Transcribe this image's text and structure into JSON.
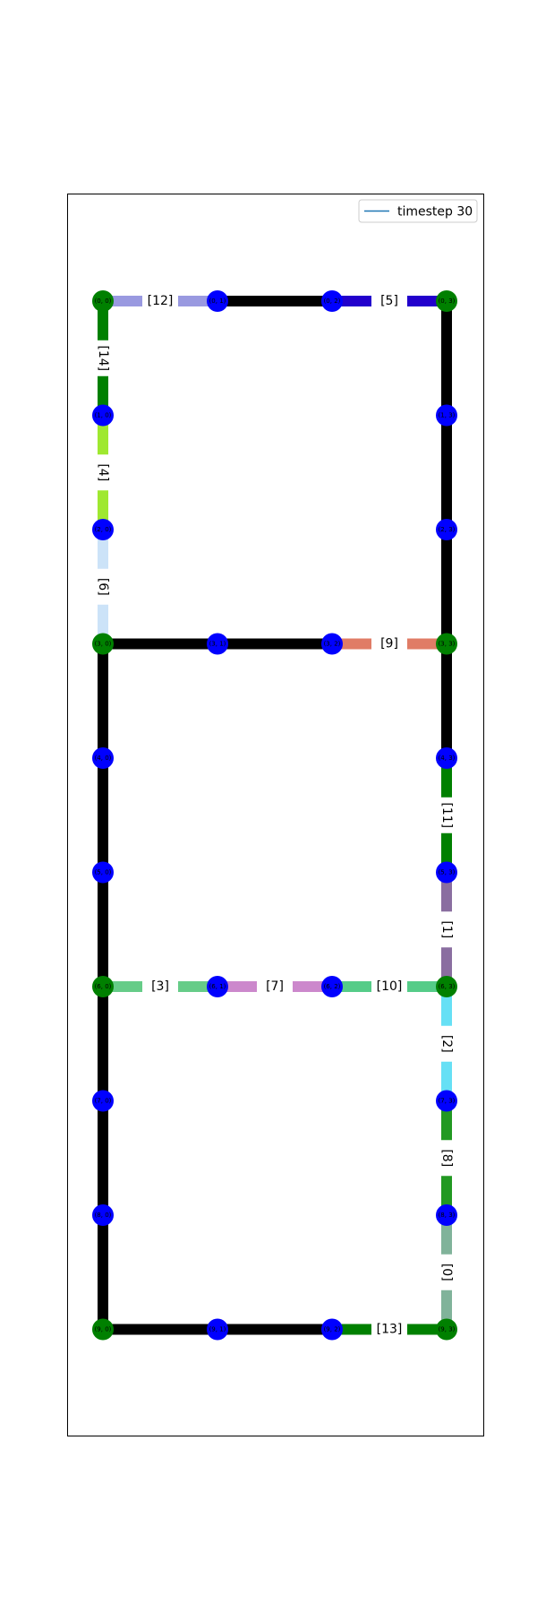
{
  "legend": {
    "label": "timestep 30",
    "line_color": "#1f77b4"
  },
  "grid": {
    "rows": 10,
    "cols": 4
  },
  "colors": {
    "node_green": "#008000",
    "node_blue": "#0000ff",
    "edge_black": "#000000"
  },
  "nodes": [
    {
      "r": 0,
      "c": 0,
      "label": "(0, 0)",
      "color": "#008000"
    },
    {
      "r": 0,
      "c": 1,
      "label": "(0, 1)",
      "color": "#0000ff"
    },
    {
      "r": 0,
      "c": 2,
      "label": "(0, 2)",
      "color": "#0000ff"
    },
    {
      "r": 0,
      "c": 3,
      "label": "(0, 3)",
      "color": "#008000"
    },
    {
      "r": 1,
      "c": 0,
      "label": "(1, 0)",
      "color": "#0000ff"
    },
    {
      "r": 1,
      "c": 3,
      "label": "(1, 3)",
      "color": "#0000ff"
    },
    {
      "r": 2,
      "c": 0,
      "label": "(2, 0)",
      "color": "#0000ff"
    },
    {
      "r": 2,
      "c": 3,
      "label": "(2, 3)",
      "color": "#0000ff"
    },
    {
      "r": 3,
      "c": 0,
      "label": "(3, 0)",
      "color": "#008000"
    },
    {
      "r": 3,
      "c": 1,
      "label": "(3, 1)",
      "color": "#0000ff"
    },
    {
      "r": 3,
      "c": 2,
      "label": "(3, 2)",
      "color": "#0000ff"
    },
    {
      "r": 3,
      "c": 3,
      "label": "(3, 3)",
      "color": "#008000"
    },
    {
      "r": 4,
      "c": 0,
      "label": "(4, 0)",
      "color": "#0000ff"
    },
    {
      "r": 4,
      "c": 3,
      "label": "(4, 3)",
      "color": "#0000ff"
    },
    {
      "r": 5,
      "c": 0,
      "label": "(5, 0)",
      "color": "#0000ff"
    },
    {
      "r": 5,
      "c": 3,
      "label": "(5, 3)",
      "color": "#0000ff"
    },
    {
      "r": 6,
      "c": 0,
      "label": "(6, 0)",
      "color": "#008000"
    },
    {
      "r": 6,
      "c": 1,
      "label": "(6, 1)",
      "color": "#0000ff"
    },
    {
      "r": 6,
      "c": 2,
      "label": "(6, 2)",
      "color": "#0000ff"
    },
    {
      "r": 6,
      "c": 3,
      "label": "(6, 3)",
      "color": "#008000"
    },
    {
      "r": 7,
      "c": 0,
      "label": "(7, 0)",
      "color": "#0000ff"
    },
    {
      "r": 7,
      "c": 3,
      "label": "(7, 3)",
      "color": "#0000ff"
    },
    {
      "r": 8,
      "c": 0,
      "label": "(8, 0)",
      "color": "#0000ff"
    },
    {
      "r": 8,
      "c": 3,
      "label": "(8, 3)",
      "color": "#0000ff"
    },
    {
      "r": 9,
      "c": 0,
      "label": "(9, 0)",
      "color": "#008000"
    },
    {
      "r": 9,
      "c": 1,
      "label": "(9, 1)",
      "color": "#0000ff"
    },
    {
      "r": 9,
      "c": 2,
      "label": "(9, 2)",
      "color": "#0000ff"
    },
    {
      "r": 9,
      "c": 3,
      "label": "(9, 3)",
      "color": "#008000"
    }
  ],
  "edges": [
    {
      "from": [
        0,
        0
      ],
      "to": [
        0,
        1
      ],
      "color": "#9999e0",
      "label": "[12]"
    },
    {
      "from": [
        0,
        1
      ],
      "to": [
        0,
        2
      ],
      "color": "#000000",
      "label": ""
    },
    {
      "from": [
        0,
        2
      ],
      "to": [
        0,
        3
      ],
      "color": "#2200cc",
      "label": "[5]"
    },
    {
      "from": [
        0,
        0
      ],
      "to": [
        1,
        0
      ],
      "color": "#008000",
      "label": "[14]"
    },
    {
      "from": [
        1,
        0
      ],
      "to": [
        2,
        0
      ],
      "color": "#9fe830",
      "label": "[4]"
    },
    {
      "from": [
        2,
        0
      ],
      "to": [
        3,
        0
      ],
      "color": "#cce3f8",
      "label": "[6]"
    },
    {
      "from": [
        0,
        3
      ],
      "to": [
        1,
        3
      ],
      "color": "#000000",
      "label": ""
    },
    {
      "from": [
        1,
        3
      ],
      "to": [
        2,
        3
      ],
      "color": "#000000",
      "label": ""
    },
    {
      "from": [
        2,
        3
      ],
      "to": [
        3,
        3
      ],
      "color": "#000000",
      "label": ""
    },
    {
      "from": [
        3,
        0
      ],
      "to": [
        3,
        1
      ],
      "color": "#000000",
      "label": ""
    },
    {
      "from": [
        3,
        1
      ],
      "to": [
        3,
        2
      ],
      "color": "#000000",
      "label": ""
    },
    {
      "from": [
        3,
        2
      ],
      "to": [
        3,
        3
      ],
      "color": "#e07c66",
      "label": "[9]"
    },
    {
      "from": [
        3,
        0
      ],
      "to": [
        4,
        0
      ],
      "color": "#000000",
      "label": ""
    },
    {
      "from": [
        4,
        0
      ],
      "to": [
        5,
        0
      ],
      "color": "#000000",
      "label": ""
    },
    {
      "from": [
        5,
        0
      ],
      "to": [
        6,
        0
      ],
      "color": "#000000",
      "label": ""
    },
    {
      "from": [
        3,
        3
      ],
      "to": [
        4,
        3
      ],
      "color": "#000000",
      "label": ""
    },
    {
      "from": [
        4,
        3
      ],
      "to": [
        5,
        3
      ],
      "color": "#008000",
      "label": "[11]"
    },
    {
      "from": [
        5,
        3
      ],
      "to": [
        6,
        3
      ],
      "color": "#8a6ea0",
      "label": "[1]"
    },
    {
      "from": [
        6,
        0
      ],
      "to": [
        6,
        1
      ],
      "color": "#66cc88",
      "label": "[3]"
    },
    {
      "from": [
        6,
        1
      ],
      "to": [
        6,
        2
      ],
      "color": "#cc88cc",
      "label": "[7]"
    },
    {
      "from": [
        6,
        2
      ],
      "to": [
        6,
        3
      ],
      "color": "#55cc88",
      "label": "[10]"
    },
    {
      "from": [
        6,
        0
      ],
      "to": [
        7,
        0
      ],
      "color": "#000000",
      "label": ""
    },
    {
      "from": [
        7,
        0
      ],
      "to": [
        8,
        0
      ],
      "color": "#000000",
      "label": ""
    },
    {
      "from": [
        8,
        0
      ],
      "to": [
        9,
        0
      ],
      "color": "#000000",
      "label": ""
    },
    {
      "from": [
        6,
        3
      ],
      "to": [
        7,
        3
      ],
      "color": "#66e0f5",
      "label": "[2]"
    },
    {
      "from": [
        7,
        3
      ],
      "to": [
        8,
        3
      ],
      "color": "#229922",
      "label": "[8]"
    },
    {
      "from": [
        8,
        3
      ],
      "to": [
        9,
        3
      ],
      "color": "#80b39a",
      "label": "[0]"
    },
    {
      "from": [
        9,
        0
      ],
      "to": [
        9,
        1
      ],
      "color": "#000000",
      "label": ""
    },
    {
      "from": [
        9,
        1
      ],
      "to": [
        9,
        2
      ],
      "color": "#000000",
      "label": ""
    },
    {
      "from": [
        9,
        2
      ],
      "to": [
        9,
        3
      ],
      "color": "#008000",
      "label": "[13]"
    }
  ]
}
